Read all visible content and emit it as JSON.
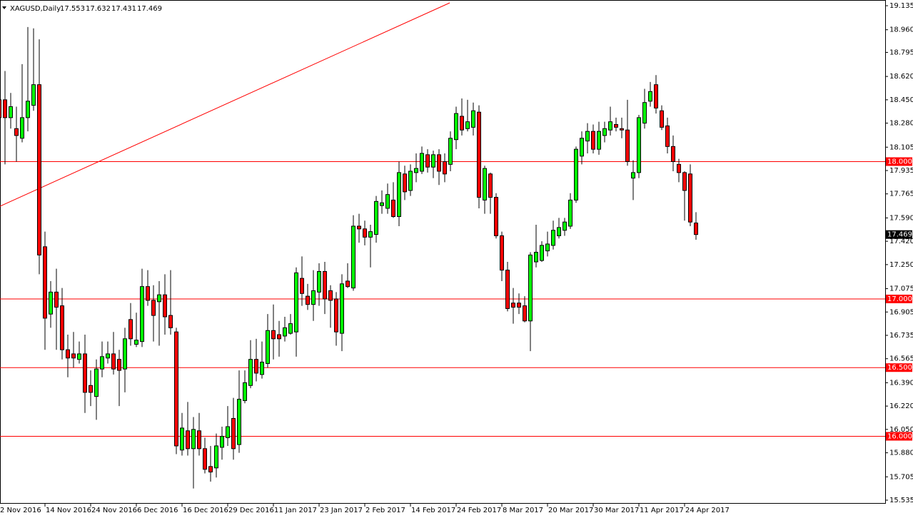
{
  "chart_data": {
    "type": "candlestick",
    "title": "XAGUSD,Daily",
    "categories": [
      "2 Nov 2016",
      null,
      null,
      null,
      null,
      null,
      null,
      null,
      "14 Nov 2016",
      null,
      null,
      null,
      null,
      null,
      null,
      null,
      "24 Nov 2016",
      null,
      null,
      null,
      null,
      null,
      null,
      null,
      "6 Dec 2016",
      null,
      null,
      null,
      null,
      null,
      null,
      null,
      "16 Dec 2016",
      null,
      null,
      null,
      null,
      null,
      null,
      null,
      "29 Dec 2016",
      null,
      null,
      null,
      null,
      null,
      null,
      null,
      "11 Jan 2017",
      null,
      null,
      null,
      null,
      null,
      null,
      null,
      "23 Jan 2017",
      null,
      null,
      null,
      null,
      null,
      null,
      null,
      "2 Feb 2017",
      null,
      null,
      null,
      null,
      null,
      null,
      null,
      "14 Feb 2017",
      null,
      null,
      null,
      null,
      null,
      null,
      null,
      "24 Feb 2017",
      null,
      null,
      null,
      null,
      null,
      null,
      null,
      "8 Mar 2017",
      null,
      null,
      null,
      null,
      null,
      null,
      null,
      "20 Mar 2017",
      null,
      null,
      null,
      null,
      null,
      null,
      null,
      "30 Mar 2017",
      null,
      null,
      null,
      null,
      null,
      null,
      null,
      "11 Apr 2017",
      null,
      null,
      null,
      null,
      null,
      null,
      null,
      "24 Apr 2017",
      null,
      null
    ],
    "open": [
      18.45,
      18.45,
      18.32,
      18.24,
      18.17,
      18.32,
      18.41,
      18.56,
      17.38,
      16.89,
      17.05,
      16.95,
      16.63,
      16.6,
      16.56,
      16.6,
      16.37,
      16.29,
      16.49,
      16.57,
      16.6,
      16.56,
      16.49,
      16.85,
      16.67,
      16.69,
      17.09,
      16.99,
      16.98,
      17.03,
      16.88,
      16.76,
      15.9,
      16.04,
      15.91,
      16.04,
      15.91,
      15.78,
      15.77,
      15.92,
      15.99,
      16.13,
      15.94,
      16.26,
      16.37,
      16.56,
      16.45,
      16.53,
      16.77,
      16.74,
      16.73,
      16.75,
      16.76,
      17.15,
      17.02,
      16.96,
      17.05,
      17.2,
      17.06,
      17.0,
      16.75,
      17.13,
      17.08,
      17.53,
      17.51,
      17.45,
      17.47,
      17.68,
      17.66,
      17.72,
      17.6,
      17.91,
      17.79,
      17.92,
      17.93,
      18.05,
      17.96,
      18.05,
      18.0,
      17.98,
      18.16,
      18.33,
      18.24,
      18.25,
      18.36,
      17.72,
      17.91,
      17.74,
      17.46,
      17.21,
      16.97,
      16.97,
      16.95,
      16.84,
      17.27,
      17.28,
      17.35,
      17.39,
      17.46,
      17.5,
      17.53,
      17.72,
      18.04,
      18.15,
      18.22,
      18.09,
      18.19,
      18.23,
      18.27,
      18.24,
      18.23,
      17.88,
      17.92,
      18.28,
      18.44,
      18.56,
      18.37,
      18.26,
      18.11,
      17.98,
      17.92,
      17.91,
      17.553
    ],
    "high": [
      18.55,
      18.66,
      18.5,
      18.4,
      18.71,
      18.98,
      18.97,
      18.89,
      17.49,
      17.13,
      17.22,
      17.08,
      16.74,
      16.76,
      16.69,
      16.74,
      16.48,
      16.56,
      16.69,
      16.69,
      16.76,
      16.63,
      16.79,
      16.97,
      16.9,
      17.22,
      17.21,
      17.1,
      17.13,
      17.18,
      17.21,
      16.79,
      16.17,
      16.25,
      16.14,
      16.17,
      15.99,
      15.93,
      16.02,
      16.07,
      16.22,
      16.28,
      16.48,
      16.48,
      16.7,
      16.71,
      16.69,
      16.89,
      16.96,
      16.84,
      16.87,
      16.89,
      17.23,
      17.31,
      17.11,
      17.21,
      17.26,
      17.27,
      17.1,
      17.05,
      17.18,
      17.26,
      17.61,
      17.62,
      17.57,
      17.54,
      17.75,
      17.79,
      17.84,
      17.85,
      18.0,
      17.97,
      17.98,
      18.06,
      18.11,
      18.09,
      18.08,
      18.09,
      18.06,
      18.22,
      18.4,
      18.46,
      18.45,
      18.43,
      18.41,
      17.97,
      17.92,
      17.77,
      17.49,
      17.27,
      17.08,
      17.04,
      17.02,
      17.34,
      17.54,
      17.42,
      17.49,
      17.57,
      17.59,
      17.59,
      17.77,
      18.11,
      18.22,
      18.28,
      18.27,
      18.29,
      18.29,
      18.4,
      18.32,
      18.32,
      18.45,
      18.01,
      18.34,
      18.53,
      18.58,
      18.63,
      18.41,
      18.32,
      18.19,
      18.02,
      17.93,
      17.98,
      17.632
    ],
    "low": [
      18.27,
      17.98,
      18.24,
      18.0,
      18.14,
      18.22,
      18.37,
      17.18,
      16.63,
      16.79,
      16.63,
      16.56,
      16.43,
      16.5,
      16.53,
      16.17,
      16.22,
      16.12,
      16.43,
      16.53,
      16.45,
      16.22,
      16.32,
      16.66,
      16.65,
      16.65,
      16.95,
      16.69,
      16.66,
      16.74,
      16.74,
      15.87,
      15.86,
      15.86,
      15.62,
      15.86,
      15.73,
      15.67,
      15.7,
      15.83,
      15.93,
      15.83,
      15.88,
      16.24,
      16.35,
      16.4,
      16.42,
      16.5,
      16.56,
      16.58,
      16.69,
      16.74,
      16.58,
      16.95,
      16.92,
      16.84,
      16.95,
      16.89,
      16.79,
      16.66,
      16.62,
      17.08,
      17.06,
      17.41,
      17.39,
      17.23,
      17.41,
      17.62,
      17.62,
      17.59,
      17.53,
      17.72,
      17.75,
      17.85,
      17.91,
      17.92,
      17.88,
      17.83,
      17.85,
      17.93,
      18.09,
      18.19,
      18.22,
      18.19,
      17.66,
      17.62,
      17.62,
      17.44,
      17.13,
      16.91,
      16.82,
      16.89,
      16.83,
      16.62,
      17.23,
      17.27,
      17.31,
      17.36,
      17.44,
      17.46,
      17.51,
      17.7,
      17.98,
      18.06,
      18.06,
      18.05,
      18.14,
      18.19,
      18.22,
      18.17,
      17.97,
      17.72,
      17.88,
      18.24,
      18.4,
      18.35,
      18.23,
      18.06,
      17.93,
      17.85,
      17.57,
      17.53,
      17.431
    ],
    "close": [
      18.32,
      18.32,
      18.4,
      18.19,
      18.32,
      18.44,
      18.56,
      17.32,
      16.86,
      17.05,
      16.94,
      16.63,
      16.57,
      16.57,
      16.6,
      16.32,
      16.32,
      16.49,
      16.58,
      16.6,
      16.49,
      16.48,
      16.71,
      16.71,
      16.7,
      17.09,
      16.99,
      16.88,
      17.03,
      16.87,
      16.79,
      15.93,
      16.06,
      15.91,
      16.05,
      15.91,
      15.76,
      15.74,
      15.93,
      16.0,
      16.07,
      15.91,
      16.27,
      16.39,
      16.56,
      16.46,
      16.54,
      16.77,
      16.71,
      16.71,
      16.79,
      16.82,
      17.19,
      17.04,
      16.96,
      17.06,
      17.2,
      17.0,
      16.99,
      16.76,
      17.11,
      17.09,
      17.53,
      17.51,
      17.45,
      17.49,
      17.71,
      17.7,
      17.76,
      17.6,
      17.92,
      17.78,
      17.93,
      17.95,
      18.06,
      17.96,
      18.05,
      17.93,
      17.91,
      18.17,
      18.35,
      18.23,
      18.29,
      18.37,
      17.74,
      17.95,
      17.74,
      17.46,
      17.21,
      16.93,
      16.94,
      16.94,
      16.84,
      17.32,
      17.34,
      17.39,
      17.4,
      17.5,
      17.52,
      17.56,
      17.72,
      18.09,
      18.17,
      18.22,
      18.09,
      18.22,
      18.24,
      18.29,
      18.25,
      18.23,
      18.0,
      17.92,
      18.32,
      18.43,
      18.51,
      18.39,
      18.25,
      18.11,
      18.0,
      17.92,
      17.79,
      17.56,
      17.469
    ],
    "up_color": "#00ff00",
    "down_color": "#ff0000",
    "wick_color": "#000000",
    "ylim": [
      15.535,
      19.135
    ],
    "yticks": [
      19.135,
      {
        "value": 18.96,
        "label": "18.960"
      },
      18.795,
      {
        "value": 18.62,
        "label": "18.620"
      },
      {
        "value": 18.45,
        "label": "18.450"
      },
      {
        "value": 18.28,
        "label": "18.280"
      },
      18.105,
      17.935,
      17.765,
      {
        "value": 17.59,
        "label": "17.590"
      },
      {
        "value": 17.42,
        "label": "17.420"
      },
      {
        "value": 17.25,
        "label": "17.250"
      },
      17.075,
      16.905,
      16.735,
      16.565,
      {
        "value": 16.39,
        "label": "16.390"
      },
      {
        "value": 16.22,
        "label": "16.220"
      },
      {
        "value": 16.05,
        "label": "16.050"
      },
      {
        "value": 15.88,
        "label": "15.880"
      },
      15.705,
      15.535
    ],
    "hlines": [
      {
        "value": 18,
        "label": "18.000"
      },
      {
        "value": 17,
        "label": "17.000"
      },
      {
        "value": 16.5,
        "label": "16.500"
      },
      {
        "value": 16,
        "label": "16.000"
      }
    ],
    "hline_color": "#ff0000"
  }
}
